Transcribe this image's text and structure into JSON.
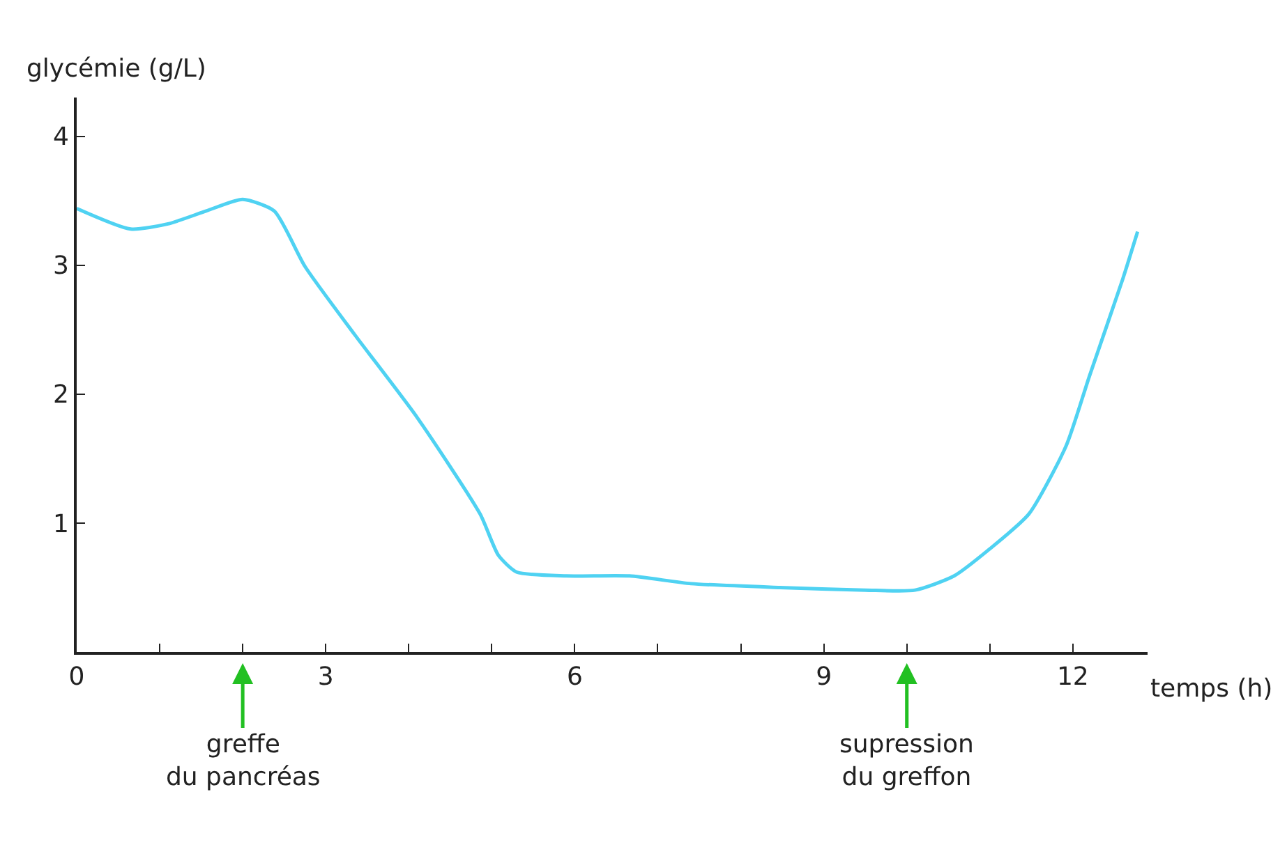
{
  "chart_data": {
    "type": "line",
    "ylabel": "glycémie (g/L)",
    "xlabel": "temps (h)",
    "x": [
      0,
      0.65,
      1.1,
      1.56,
      2.0,
      2.38,
      2.75,
      3.35,
      4.1,
      4.86,
      5.08,
      5.3,
      5.9,
      6.66,
      7.4,
      8.47,
      9.5,
      10.1,
      10.57,
      11.0,
      11.47,
      11.92,
      12.2,
      12.6,
      12.78
    ],
    "series": [
      {
        "color": "#4fd2f2",
        "values": [
          3.44,
          3.28,
          3.32,
          3.42,
          3.51,
          3.42,
          2.99,
          2.46,
          1.82,
          1.07,
          0.75,
          0.62,
          0.59,
          0.59,
          0.53,
          0.5,
          0.48,
          0.48,
          0.59,
          0.8,
          1.07,
          1.6,
          2.14,
          2.89,
          3.26
        ]
      }
    ],
    "xlim": [
      0,
      12.9
    ],
    "ylim": [
      0,
      4.3
    ],
    "xticks": [
      0,
      {
        "value": 1,
        "label": null
      },
      {
        "value": 2,
        "label": null
      },
      3,
      {
        "value": 4,
        "label": null
      },
      {
        "value": 5,
        "label": null
      },
      6,
      {
        "value": 7,
        "label": null
      },
      {
        "value": 8,
        "label": null
      },
      9,
      {
        "value": 10,
        "label": null
      },
      {
        "value": 11,
        "label": null
      },
      12
    ],
    "yticks": [
      1,
      2,
      3,
      4
    ],
    "marker": "none",
    "line_style": "solid",
    "ref_lines": [
      {
        "axis": "x",
        "value": 2,
        "label": "greffe\ndu pancréas",
        "color": "#22c022"
      },
      {
        "axis": "x",
        "value": 10,
        "label": "supression\ndu greffon",
        "color": "#22c022"
      }
    ]
  }
}
